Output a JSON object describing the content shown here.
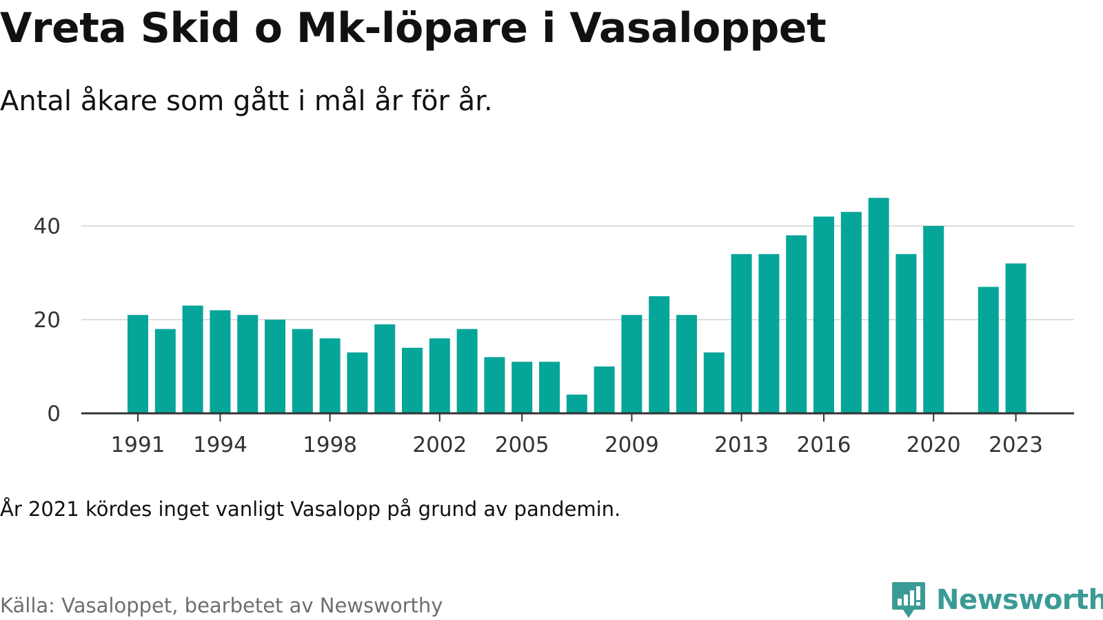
{
  "title": "Vreta Skid o Mk-löpare i Vasaloppet",
  "subtitle": "Antal åkare som gått i mål år för år.",
  "note": "År 2021 kördes inget vanligt Vasalopp på grund av pandemin.",
  "source": "Källa: Vasaloppet, bearbetet av Newsworthy",
  "brand": {
    "name": "Newsworthy",
    "icon": "newsworthy-logo-icon"
  },
  "colors": {
    "bar": "#06a59a",
    "grid": "#dddddd",
    "axis": "#333333",
    "tick_text": "#333333",
    "brand": "#3a9b95"
  },
  "chart_data": {
    "type": "bar",
    "title": "Vreta Skid o Mk-löpare i Vasaloppet",
    "subtitle": "Antal åkare som gått i mål år för år.",
    "x": [
      1991,
      1992,
      1993,
      1994,
      1995,
      1996,
      1997,
      1998,
      1999,
      2000,
      2001,
      2002,
      2003,
      2004,
      2005,
      2006,
      2007,
      2008,
      2009,
      2010,
      2011,
      2012,
      2013,
      2014,
      2015,
      2016,
      2017,
      2018,
      2019,
      2020,
      2021,
      2022,
      2023
    ],
    "values": [
      21,
      18,
      23,
      22,
      21,
      20,
      18,
      16,
      13,
      19,
      14,
      16,
      18,
      12,
      11,
      11,
      4,
      10,
      21,
      25,
      21,
      13,
      34,
      34,
      38,
      42,
      43,
      46,
      34,
      40,
      null,
      27,
      32
    ],
    "x_ticks": [
      "1991",
      "1994",
      "1998",
      "2002",
      "2005",
      "2009",
      "2013",
      "2016",
      "2020",
      "2023"
    ],
    "y_ticks": [
      "0",
      "20",
      "40"
    ],
    "ylim": [
      0,
      48
    ],
    "xlabel": "",
    "ylabel": "",
    "grid": true,
    "legend": "none"
  }
}
